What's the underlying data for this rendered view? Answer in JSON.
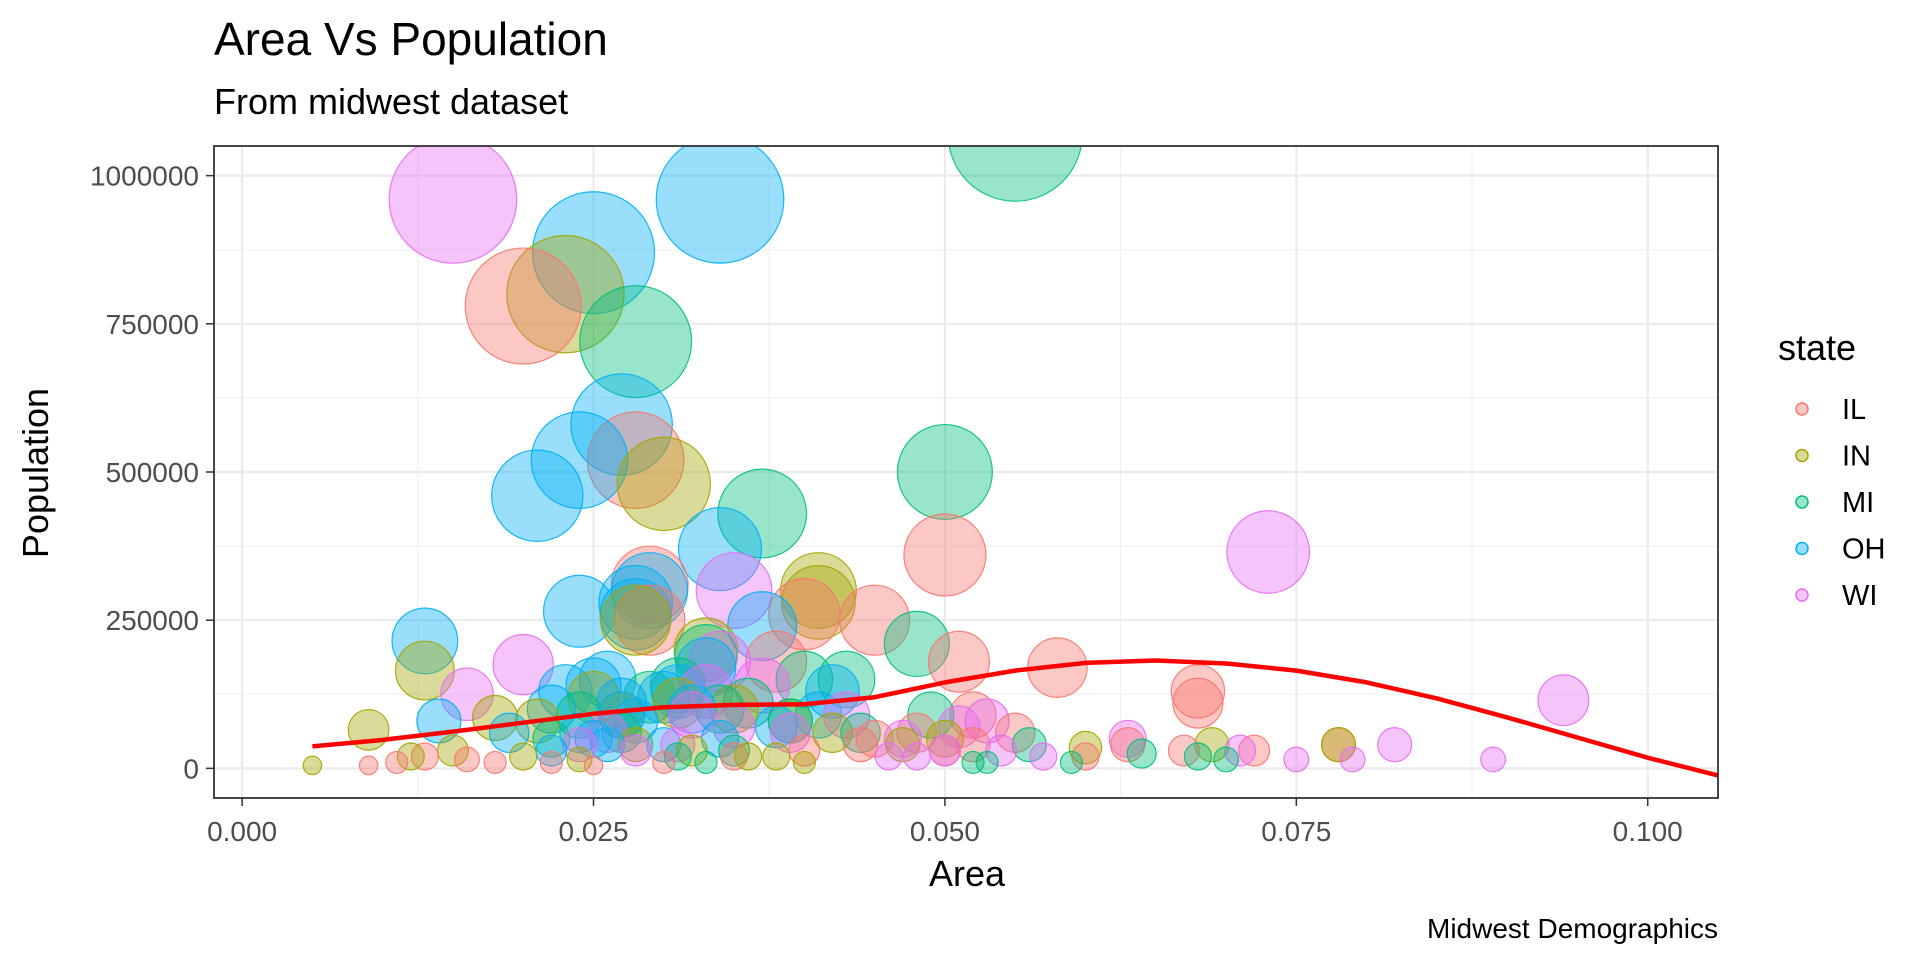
{
  "chart_data": {
    "type": "scatter",
    "title": "Area Vs Population",
    "subtitle": "From midwest dataset",
    "caption": "Midwest Demographics",
    "xlabel": "Area",
    "ylabel": "Population",
    "xlim": [
      -0.002,
      0.105
    ],
    "ylim": [
      -50000,
      1050000
    ],
    "x_ticks": [
      0.0,
      0.025,
      0.05,
      0.075,
      0.1
    ],
    "x_tick_labels": [
      "0.000",
      "0.025",
      "0.050",
      "0.075",
      "0.100"
    ],
    "y_ticks": [
      0,
      250000,
      500000,
      750000,
      1000000
    ],
    "y_tick_labels": [
      "0",
      "250000",
      "500000",
      "750000",
      "1000000"
    ],
    "grid": true,
    "legend": {
      "title": "state",
      "position": "right",
      "entries": [
        {
          "label": "IL",
          "color": "#F8766D"
        },
        {
          "label": "IN",
          "color": "#A3A500"
        },
        {
          "label": "MI",
          "color": "#00BF7D"
        },
        {
          "label": "OH",
          "color": "#00B0F6"
        },
        {
          "label": "WI",
          "color": "#E76BF3"
        }
      ]
    },
    "size_encoding": "population",
    "smooth_line": {
      "color": "#FF0000",
      "x": [
        0.005,
        0.01,
        0.015,
        0.02,
        0.025,
        0.03,
        0.035,
        0.04,
        0.045,
        0.05,
        0.055,
        0.06,
        0.065,
        0.07,
        0.075,
        0.08,
        0.085,
        0.09,
        0.095,
        0.1,
        0.105
      ],
      "y": [
        37000,
        48000,
        62000,
        77000,
        92000,
        103000,
        107000,
        108000,
        120000,
        145000,
        165000,
        178000,
        182000,
        177000,
        165000,
        145000,
        118000,
        86000,
        52000,
        18000,
        -12000
      ]
    },
    "series": [
      {
        "name": "IL",
        "color": "#F8766D",
        "x": [
          0.02,
          0.028,
          0.029,
          0.029,
          0.05,
          0.04,
          0.045,
          0.038,
          0.051,
          0.058,
          0.068,
          0.068,
          0.052,
          0.055,
          0.045,
          0.052,
          0.063,
          0.067,
          0.05,
          0.048,
          0.06,
          0.072,
          0.078,
          0.009,
          0.011,
          0.013,
          0.016,
          0.018,
          0.022,
          0.025,
          0.03,
          0.035,
          0.04,
          0.044
        ],
        "y": [
          780000,
          520000,
          310000,
          250000,
          360000,
          260000,
          250000,
          180000,
          180000,
          170000,
          130000,
          110000,
          90000,
          60000,
          50000,
          40000,
          40000,
          30000,
          30000,
          60000,
          20000,
          30000,
          40000,
          5000,
          10000,
          20000,
          15000,
          10000,
          10000,
          5000,
          10000,
          20000,
          30000,
          40000
        ]
      },
      {
        "name": "IN",
        "color": "#A3A500",
        "x": [
          0.023,
          0.03,
          0.013,
          0.028,
          0.041,
          0.041,
          0.033,
          0.009,
          0.018,
          0.021,
          0.025,
          0.027,
          0.031,
          0.035,
          0.039,
          0.042,
          0.047,
          0.005,
          0.012,
          0.015,
          0.02,
          0.024,
          0.028,
          0.032,
          0.036,
          0.038,
          0.04,
          0.06,
          0.069,
          0.078,
          0.05
        ],
        "y": [
          800000,
          480000,
          165000,
          250000,
          300000,
          280000,
          200000,
          65000,
          85000,
          80000,
          120000,
          90000,
          110000,
          100000,
          80000,
          60000,
          40000,
          5000,
          20000,
          30000,
          20000,
          15000,
          40000,
          30000,
          20000,
          20000,
          10000,
          35000,
          40000,
          40000,
          50000
        ]
      },
      {
        "name": "MI",
        "color": "#00BF7D",
        "x": [
          0.055,
          0.028,
          0.05,
          0.037,
          0.048,
          0.033,
          0.04,
          0.043,
          0.029,
          0.031,
          0.034,
          0.036,
          0.049,
          0.039,
          0.044,
          0.056,
          0.064,
          0.07,
          0.068,
          0.052,
          0.053,
          0.059,
          0.024,
          0.027,
          0.022,
          0.035,
          0.033,
          0.031
        ],
        "y": [
          1070000,
          720000,
          500000,
          430000,
          210000,
          190000,
          150000,
          150000,
          120000,
          140000,
          100000,
          110000,
          90000,
          80000,
          60000,
          40000,
          25000,
          15000,
          20000,
          10000,
          10000,
          10000,
          90000,
          60000,
          50000,
          30000,
          10000,
          20000
        ]
      },
      {
        "name": "OH",
        "color": "#00B0F6",
        "x": [
          0.034,
          0.025,
          0.027,
          0.024,
          0.021,
          0.013,
          0.024,
          0.034,
          0.028,
          0.037,
          0.028,
          0.029,
          0.033,
          0.025,
          0.023,
          0.026,
          0.031,
          0.03,
          0.027,
          0.032,
          0.014,
          0.022,
          0.041,
          0.042,
          0.038,
          0.025,
          0.019,
          0.026,
          0.028,
          0.024,
          0.034,
          0.03,
          0.022,
          0.027
        ],
        "y": [
          960000,
          870000,
          580000,
          520000,
          460000,
          215000,
          265000,
          370000,
          280000,
          240000,
          260000,
          300000,
          170000,
          140000,
          130000,
          150000,
          130000,
          120000,
          110000,
          100000,
          80000,
          100000,
          90000,
          130000,
          70000,
          50000,
          60000,
          40000,
          80000,
          60000,
          50000,
          40000,
          30000,
          90000
        ]
      },
      {
        "name": "WI",
        "color": "#E76BF3",
        "x": [
          0.015,
          0.073,
          0.02,
          0.035,
          0.094,
          0.016,
          0.034,
          0.037,
          0.033,
          0.032,
          0.051,
          0.053,
          0.063,
          0.071,
          0.082,
          0.089,
          0.079,
          0.075,
          0.057,
          0.054,
          0.043,
          0.047,
          0.039,
          0.035,
          0.031,
          0.028,
          0.026,
          0.024,
          0.046,
          0.05,
          0.048
        ],
        "y": [
          960000,
          365000,
          175000,
          300000,
          115000,
          125000,
          180000,
          140000,
          130000,
          90000,
          70000,
          80000,
          50000,
          30000,
          40000,
          15000,
          15000,
          15000,
          20000,
          30000,
          90000,
          50000,
          60000,
          70000,
          40000,
          30000,
          60000,
          40000,
          20000,
          30000,
          20000
        ]
      }
    ]
  }
}
